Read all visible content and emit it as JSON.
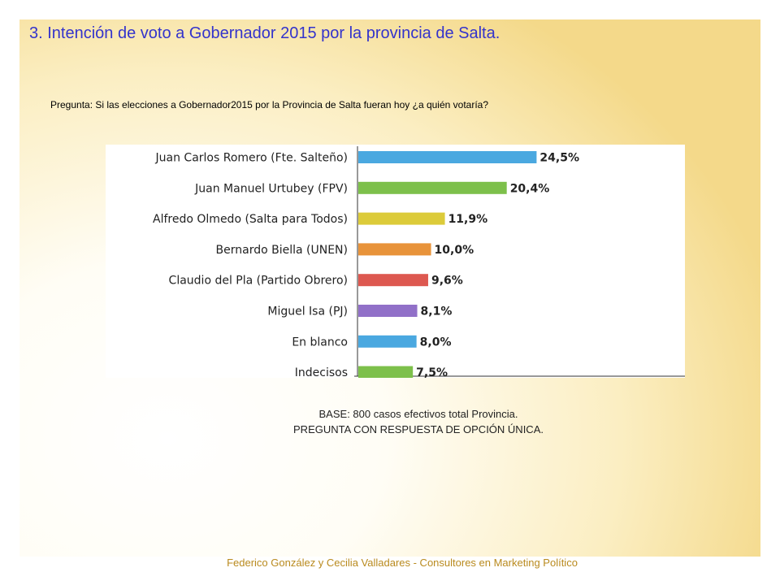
{
  "slide": {
    "title": "3. Intención de voto a Gobernador 2015 por la provincia de Salta.",
    "question": "Pregunta: Si las elecciones a Gobernador2015 por la Provincia de Salta fueran hoy ¿a quién votaría?",
    "base_line1": "BASE: 800 casos efectivos total Provincia.",
    "base_line2": "PREGUNTA CON RESPUESTA DE OPCIÓN ÚNICA.",
    "footer": "Federico González y Cecilia Valladares - Consultores en Marketing Político"
  },
  "chart_data": {
    "type": "bar",
    "orientation": "horizontal",
    "categories": [
      "Juan Carlos Romero (Fte. Salteño)",
      "Juan Manuel Urtubey (FPV)",
      "Alfredo Olmedo (Salta para Todos)",
      "Bernardo Biella (UNEN)",
      "Claudio del Pla (Partido Obrero)",
      "Miguel Isa (PJ)",
      "En blanco",
      "Indecisos"
    ],
    "values": [
      24.5,
      20.4,
      11.9,
      10.0,
      9.6,
      8.1,
      8.0,
      7.5
    ],
    "value_labels": [
      "24,5%",
      "20,4%",
      "11,9%",
      "10,0%",
      "9,6%",
      "8,1%",
      "8,0%",
      "7,5%"
    ],
    "colors": [
      "#4aa8e0",
      "#7dc04b",
      "#dccb3a",
      "#e8933a",
      "#dd5850",
      "#9170c8",
      "#4aa8e0",
      "#7dc04b"
    ],
    "title": "",
    "xlabel": "",
    "ylabel": "",
    "xlim": [
      0,
      45
    ],
    "grid": false,
    "legend": "none"
  }
}
